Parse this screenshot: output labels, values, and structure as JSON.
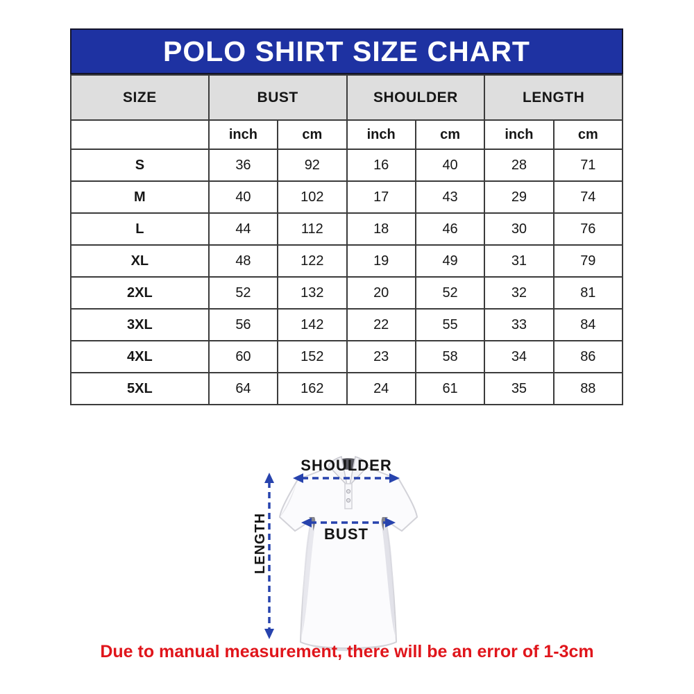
{
  "title": "POLO SHIRT SIZE CHART",
  "table": {
    "group_headers": [
      "SIZE",
      "BUST",
      "SHOULDER",
      "LENGTH"
    ],
    "unit_headers": [
      "inch",
      "cm",
      "inch",
      "cm",
      "inch",
      "cm"
    ],
    "rows": [
      {
        "size": "S",
        "values": [
          "36",
          "92",
          "16",
          "40",
          "28",
          "71"
        ]
      },
      {
        "size": "M",
        "values": [
          "40",
          "102",
          "17",
          "43",
          "29",
          "74"
        ]
      },
      {
        "size": "L",
        "values": [
          "44",
          "112",
          "18",
          "46",
          "30",
          "76"
        ]
      },
      {
        "size": "XL",
        "values": [
          "48",
          "122",
          "19",
          "49",
          "31",
          "79"
        ]
      },
      {
        "size": "2XL",
        "values": [
          "52",
          "132",
          "20",
          "52",
          "32",
          "81"
        ]
      },
      {
        "size": "3XL",
        "values": [
          "56",
          "142",
          "22",
          "55",
          "33",
          "84"
        ]
      },
      {
        "size": "4XL",
        "values": [
          "60",
          "152",
          "23",
          "58",
          "34",
          "86"
        ]
      },
      {
        "size": "5XL",
        "values": [
          "64",
          "162",
          "24",
          "61",
          "35",
          "88"
        ]
      }
    ]
  },
  "diagram": {
    "shoulder_label": "SHOULDER",
    "bust_label": "BUST",
    "length_label": "LENGTH"
  },
  "note": "Due to manual measurement, there will be an error of 1-3cm",
  "colors": {
    "title_bg": "#1e32a2",
    "title_text": "#ffffff",
    "header_bg": "#dedede",
    "table_border": "#3b3b3b",
    "arrow_blue": "#2743ad",
    "note_red": "#e0151b"
  },
  "chart_data": {
    "type": "table",
    "title": "POLO SHIRT SIZE CHART",
    "columns": [
      "SIZE",
      "BUST inch",
      "BUST cm",
      "SHOULDER inch",
      "SHOULDER cm",
      "LENGTH inch",
      "LENGTH cm"
    ],
    "rows": [
      [
        "S",
        36,
        92,
        16,
        40,
        28,
        71
      ],
      [
        "M",
        40,
        102,
        17,
        43,
        29,
        74
      ],
      [
        "L",
        44,
        112,
        18,
        46,
        30,
        76
      ],
      [
        "XL",
        48,
        122,
        19,
        49,
        31,
        79
      ],
      [
        "2XL",
        52,
        132,
        20,
        52,
        32,
        81
      ],
      [
        "3XL",
        56,
        142,
        22,
        55,
        33,
        84
      ],
      [
        "4XL",
        60,
        152,
        23,
        58,
        34,
        86
      ],
      [
        "5XL",
        64,
        162,
        24,
        61,
        35,
        88
      ]
    ],
    "annotations": [
      "SHOULDER",
      "BUST",
      "LENGTH",
      "Due to manual measurement, there will be an error of 1-3cm"
    ]
  }
}
